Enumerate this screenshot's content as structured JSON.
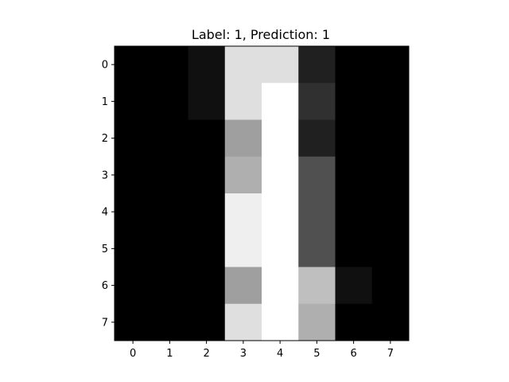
{
  "chart_data": {
    "type": "heatmap",
    "title": "Label: 1, Prediction: 1",
    "colormap": "gray",
    "value_range": [
      0,
      16
    ],
    "x_ticks": [
      "0",
      "1",
      "2",
      "3",
      "4",
      "5",
      "6",
      "7"
    ],
    "y_ticks": [
      "0",
      "1",
      "2",
      "3",
      "4",
      "5",
      "6",
      "7"
    ],
    "grid": false,
    "values": [
      [
        0,
        0,
        1,
        14,
        14,
        2,
        0,
        0
      ],
      [
        0,
        0,
        1,
        14,
        16,
        3,
        0,
        0
      ],
      [
        0,
        0,
        0,
        10,
        16,
        2,
        0,
        0
      ],
      [
        0,
        0,
        0,
        11,
        16,
        5,
        0,
        0
      ],
      [
        0,
        0,
        0,
        15,
        16,
        5,
        0,
        0
      ],
      [
        0,
        0,
        0,
        15,
        16,
        5,
        0,
        0
      ],
      [
        0,
        0,
        0,
        10,
        16,
        12,
        1,
        0
      ],
      [
        0,
        0,
        0,
        14,
        16,
        11,
        0,
        0
      ]
    ]
  }
}
